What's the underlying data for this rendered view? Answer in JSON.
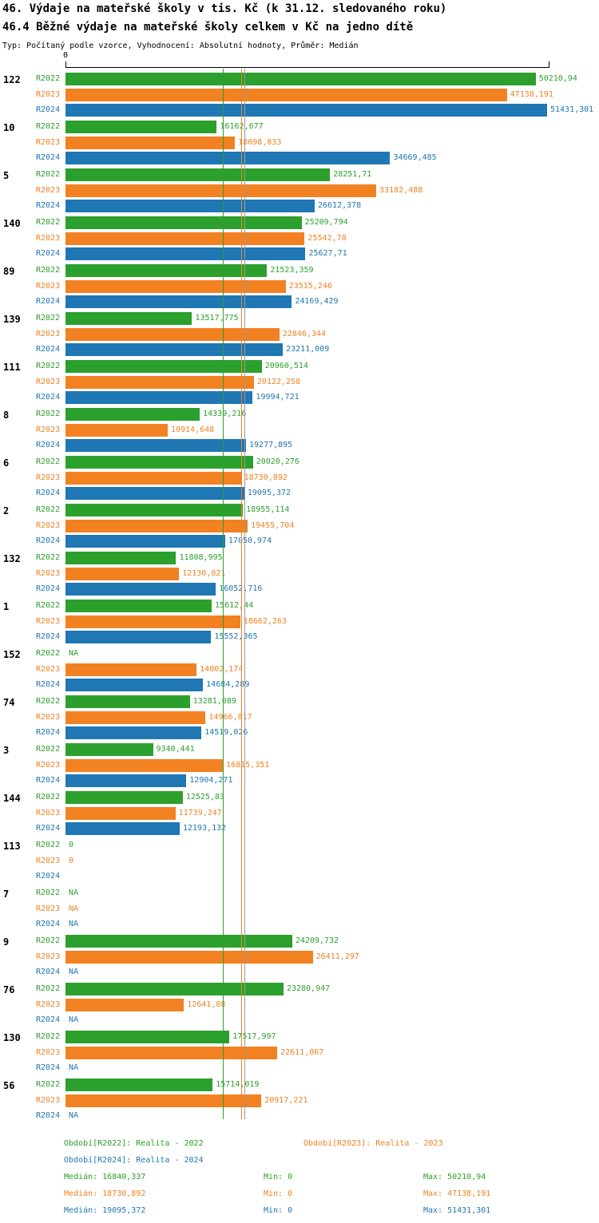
{
  "title": "46. Výdaje na mateřské školy v tis. Kč (k 31.12. sledovaného roku)",
  "subtitle": "46.4 Běžné výdaje na mateřské školy celkem v Kč na jedno dítě",
  "meta": "Typ: Počítaný podle vzorce, Vyhodnocení: Absolutní hodnoty, Průměr: Medián",
  "axis": {
    "zero_label": "0"
  },
  "colors": {
    "series": [
      "#2ca02c",
      "#f28122",
      "#1f77b4"
    ],
    "median_lines": [
      "#2ca02c",
      "#f28122",
      "#9a9a9a"
    ],
    "axis": "#000000"
  },
  "chart_data": {
    "type": "bar",
    "orientation": "horizontal",
    "series_labels": [
      "R2022",
      "R2023",
      "R2024"
    ],
    "xlim": [
      0,
      51431.301
    ],
    "medians": [
      16840.337,
      18730.892,
      19095.372
    ],
    "groups": [
      {
        "id": "122",
        "rows": [
          {
            "text": "50210,94",
            "value": 50210.94
          },
          {
            "text": "47138,191",
            "value": 47138.191
          },
          {
            "text": "51431,301",
            "value": 51431.301
          }
        ]
      },
      {
        "id": "10",
        "rows": [
          {
            "text": "16162,677",
            "value": 16162.677
          },
          {
            "text": "18098,833",
            "value": 18098.833
          },
          {
            "text": "34669,485",
            "value": 34669.485
          }
        ]
      },
      {
        "id": "5",
        "rows": [
          {
            "text": "28251,71",
            "value": 28251.71
          },
          {
            "text": "33182,488",
            "value": 33182.488
          },
          {
            "text": "26612,378",
            "value": 26612.378
          }
        ]
      },
      {
        "id": "140",
        "rows": [
          {
            "text": "25209,794",
            "value": 25209.794
          },
          {
            "text": "25542,78",
            "value": 25542.78
          },
          {
            "text": "25627,71",
            "value": 25627.71
          }
        ]
      },
      {
        "id": "89",
        "rows": [
          {
            "text": "21523,359",
            "value": 21523.359
          },
          {
            "text": "23515,246",
            "value": 23515.246
          },
          {
            "text": "24169,429",
            "value": 24169.429
          }
        ]
      },
      {
        "id": "139",
        "rows": [
          {
            "text": "13517,775",
            "value": 13517.775
          },
          {
            "text": "22846,344",
            "value": 22846.344
          },
          {
            "text": "23211,009",
            "value": 23211.009
          }
        ]
      },
      {
        "id": "111",
        "rows": [
          {
            "text": "20960,514",
            "value": 20960.514
          },
          {
            "text": "20122,258",
            "value": 20122.258
          },
          {
            "text": "19994,721",
            "value": 19994.721
          }
        ]
      },
      {
        "id": "8",
        "rows": [
          {
            "text": "14339,216",
            "value": 14339.216
          },
          {
            "text": "10914,648",
            "value": 10914.648
          },
          {
            "text": "19277,895",
            "value": 19277.895
          }
        ]
      },
      {
        "id": "6",
        "rows": [
          {
            "text": "20020,276",
            "value": 20020.276
          },
          {
            "text": "18730,892",
            "value": 18730.892
          },
          {
            "text": "19095,372",
            "value": 19095.372
          }
        ]
      },
      {
        "id": "2",
        "rows": [
          {
            "text": "18955,114",
            "value": 18955.114
          },
          {
            "text": "19455,704",
            "value": 19455.704
          },
          {
            "text": "17050,974",
            "value": 17050.974
          }
        ]
      },
      {
        "id": "132",
        "rows": [
          {
            "text": "11808,995",
            "value": 11808.995
          },
          {
            "text": "12130,021",
            "value": 12130.021
          },
          {
            "text": "16052,716",
            "value": 16052.716
          }
        ]
      },
      {
        "id": "1",
        "rows": [
          {
            "text": "15612,44",
            "value": 15612.44
          },
          {
            "text": "18662,263",
            "value": 18662.263
          },
          {
            "text": "15552,365",
            "value": 15552.365
          }
        ]
      },
      {
        "id": "152",
        "rows": [
          {
            "text": "NA",
            "value": null
          },
          {
            "text": "14002,174",
            "value": 14002.174
          },
          {
            "text": "14684,289",
            "value": 14684.289
          }
        ]
      },
      {
        "id": "74",
        "rows": [
          {
            "text": "13281,089",
            "value": 13281.089
          },
          {
            "text": "14966,817",
            "value": 14966.817
          },
          {
            "text": "14519,026",
            "value": 14519.026
          }
        ]
      },
      {
        "id": "3",
        "rows": [
          {
            "text": "9340,441",
            "value": 9340.441
          },
          {
            "text": "16815,351",
            "value": 16815.351
          },
          {
            "text": "12904,271",
            "value": 12904.271
          }
        ]
      },
      {
        "id": "144",
        "rows": [
          {
            "text": "12525,83",
            "value": 12525.83
          },
          {
            "text": "11739,247",
            "value": 11739.247
          },
          {
            "text": "12193,132",
            "value": 12193.132
          }
        ]
      },
      {
        "id": "113",
        "rows": [
          {
            "text": "0",
            "value": 0
          },
          {
            "text": "0",
            "value": 0
          },
          {
            "text": "",
            "value": null
          }
        ]
      },
      {
        "id": "7",
        "rows": [
          {
            "text": "NA",
            "value": null
          },
          {
            "text": "NA",
            "value": null
          },
          {
            "text": "NA",
            "value": null
          }
        ]
      },
      {
        "id": "9",
        "rows": [
          {
            "text": "24209,732",
            "value": 24209.732
          },
          {
            "text": "26411,297",
            "value": 26411.297
          },
          {
            "text": "NA",
            "value": null
          }
        ]
      },
      {
        "id": "76",
        "rows": [
          {
            "text": "23280,947",
            "value": 23280.947
          },
          {
            "text": "12641,08",
            "value": 12641.08
          },
          {
            "text": "NA",
            "value": null
          }
        ]
      },
      {
        "id": "130",
        "rows": [
          {
            "text": "17517,997",
            "value": 17517.997
          },
          {
            "text": "22611,067",
            "value": 22611.067
          },
          {
            "text": "NA",
            "value": null
          }
        ]
      },
      {
        "id": "56",
        "rows": [
          {
            "text": "15714,019",
            "value": 15714.019
          },
          {
            "text": "20917,221",
            "value": 20917.221
          },
          {
            "text": "NA",
            "value": null
          }
        ]
      }
    ],
    "legend": [
      "Období[R2022]: Realita - 2022",
      "Období[R2023]: Realita - 2023",
      "Období[R2024]: Realita - 2024"
    ],
    "stats": [
      {
        "median": "Medián: 16840,337",
        "min": "Min: 0",
        "max": "Max: 50210,94"
      },
      {
        "median": "Medián: 18730,892",
        "min": "Min: 0",
        "max": "Max: 47138,191"
      },
      {
        "median": "Medián: 19095,372",
        "min": "Min: 0",
        "max": "Max: 51431,301"
      }
    ]
  }
}
